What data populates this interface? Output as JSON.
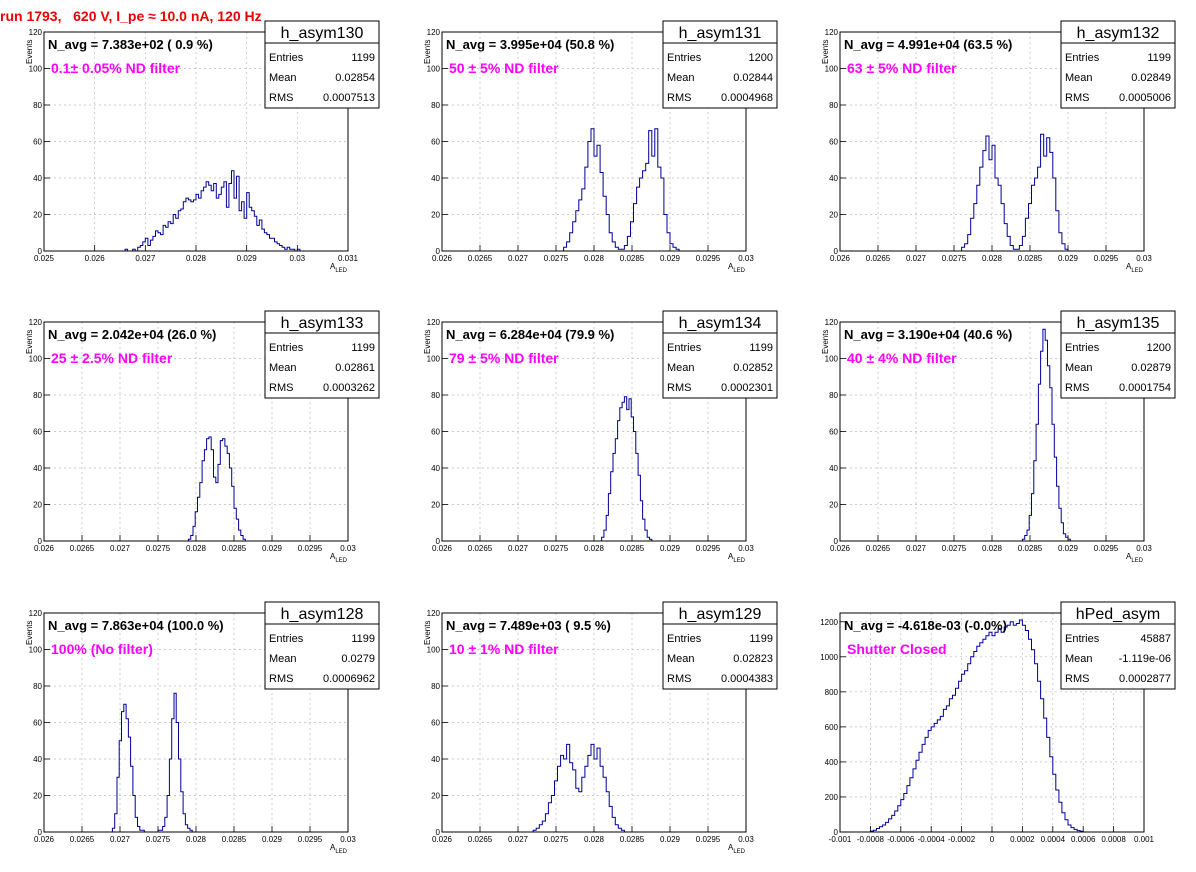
{
  "header": {
    "title": "run 1793,   620 V, I_pe ≈ 10.0 nA, 120 Hz"
  },
  "chart_data": [
    {
      "type": "histogram",
      "name": "h_asym130",
      "navg": "N_avg = 7.383e+02 ( 0.9 %)",
      "filter": "0.1± 0.05% ND filter",
      "stats": [
        [
          "Entries",
          "1199"
        ],
        [
          "Mean",
          "0.02854"
        ],
        [
          "RMS",
          "0.0007513"
        ]
      ],
      "ylabel": "Events",
      "xlabel": "A",
      "xlabel_sub": "LED",
      "xlim": [
        0.025,
        0.031
      ],
      "ylim": [
        0,
        120
      ],
      "xticks": [
        0.025,
        0.026,
        0.027,
        0.028,
        0.029,
        0.03,
        0.031
      ],
      "xtick_labels": [
        "0.025",
        "0.026",
        "0.027",
        "0.028",
        "0.029",
        "0.03",
        "0.031"
      ],
      "yticks": [
        0,
        20,
        40,
        60,
        80,
        100,
        120
      ],
      "bin_start": 0.0266,
      "bin_width": 5e-05,
      "counts": [
        1,
        0,
        0,
        1,
        0,
        2,
        3,
        5,
        7,
        3,
        6,
        8,
        11,
        10,
        9,
        14,
        13,
        16,
        15,
        20,
        18,
        22,
        23,
        27,
        29,
        28,
        27,
        28,
        31,
        29,
        33,
        35,
        38,
        36,
        33,
        37,
        29,
        31,
        35,
        38,
        24,
        37,
        44,
        29,
        41,
        22,
        27,
        18,
        32,
        24,
        22,
        19,
        14,
        17,
        12,
        10,
        9,
        7,
        7,
        5,
        4,
        3,
        2,
        1,
        2,
        1,
        1,
        0,
        1
      ]
    },
    {
      "type": "histogram",
      "name": "h_asym131",
      "navg": "N_avg = 3.995e+04 (50.8 %)",
      "filter": " 50 ± 5% ND filter",
      "stats": [
        [
          "Entries",
          "1200"
        ],
        [
          "Mean",
          "0.02844"
        ],
        [
          "RMS",
          "0.0004968"
        ]
      ],
      "ylabel": "Events",
      "xlabel": "A",
      "xlabel_sub": "LED",
      "xlim": [
        0.026,
        0.03
      ],
      "ylim": [
        0,
        120
      ],
      "xticks": [
        0.026,
        0.0265,
        0.027,
        0.0275,
        0.028,
        0.0285,
        0.029,
        0.0295,
        0.03
      ],
      "xtick_labels": [
        "0.026",
        "0.0265",
        "0.027",
        "0.0275",
        "0.028",
        "0.0285",
        "0.029",
        "0.0295",
        "0.03"
      ],
      "yticks": [
        0,
        20,
        40,
        60,
        80,
        100,
        120
      ],
      "bin_start": 0.0276,
      "bin_width": 4e-05,
      "counts": [
        2,
        5,
        10,
        16,
        22,
        28,
        34,
        46,
        60,
        67,
        52,
        58,
        43,
        30,
        20,
        10,
        5,
        2,
        1,
        1,
        3,
        8,
        16,
        26,
        35,
        40,
        44,
        48,
        66,
        52,
        67,
        46,
        40,
        20,
        10,
        4,
        2,
        1
      ]
    },
    {
      "type": "histogram",
      "name": "h_asym132",
      "navg": "N_avg = 4.991e+04 (63.5 %)",
      "filter": " 63 ± 5% ND filter",
      "stats": [
        [
          "Entries",
          "1199"
        ],
        [
          "Mean",
          "0.02849"
        ],
        [
          "RMS",
          "0.0005006"
        ]
      ],
      "ylabel": "Events",
      "xlabel": "A",
      "xlabel_sub": "LED",
      "xlim": [
        0.026,
        0.03
      ],
      "ylim": [
        0,
        120
      ],
      "xticks": [
        0.026,
        0.0265,
        0.027,
        0.0275,
        0.028,
        0.0285,
        0.029,
        0.0295,
        0.03
      ],
      "xtick_labels": [
        "0.026",
        "0.0265",
        "0.027",
        "0.0275",
        "0.028",
        "0.0285",
        "0.029",
        "0.0295",
        "0.03"
      ],
      "yticks": [
        0,
        20,
        40,
        60,
        80,
        100,
        120
      ],
      "bin_start": 0.0276,
      "bin_width": 4e-05,
      "counts": [
        2,
        4,
        9,
        18,
        26,
        36,
        46,
        55,
        63,
        50,
        58,
        40,
        36,
        26,
        15,
        8,
        3,
        1,
        1,
        3,
        8,
        18,
        26,
        36,
        40,
        46,
        64,
        52,
        62,
        54,
        40,
        22,
        10,
        4,
        1
      ]
    },
    {
      "type": "histogram",
      "name": "h_asym133",
      "navg": "N_avg = 2.042e+04 (26.0 %)",
      "filter": " 25 ± 2.5% ND filter",
      "stats": [
        [
          "Entries",
          "1199"
        ],
        [
          "Mean",
          "0.02861"
        ],
        [
          "RMS",
          "0.0003262"
        ]
      ],
      "ylabel": "Events",
      "xlabel": "A",
      "xlabel_sub": "LED",
      "xlim": [
        0.026,
        0.03
      ],
      "ylim": [
        0,
        120
      ],
      "xticks": [
        0.026,
        0.0265,
        0.027,
        0.0275,
        0.028,
        0.0285,
        0.029,
        0.0295,
        0.03
      ],
      "xtick_labels": [
        "0.026",
        "0.0265",
        "0.027",
        "0.0275",
        "0.028",
        "0.0285",
        "0.029",
        "0.0295",
        "0.03"
      ],
      "yticks": [
        0,
        20,
        40,
        60,
        80,
        100,
        120
      ],
      "bin_start": 0.0279,
      "bin_width": 3e-05,
      "counts": [
        1,
        3,
        8,
        16,
        24,
        32,
        44,
        50,
        56,
        57,
        50,
        35,
        32,
        42,
        55,
        56,
        52,
        48,
        40,
        30,
        18,
        12,
        6,
        3,
        1
      ]
    },
    {
      "type": "histogram",
      "name": "h_asym134",
      "navg": "N_avg = 6.284e+04 (79.9 %)",
      "filter": " 79 ± 5% ND filter",
      "stats": [
        [
          "Entries",
          "1199"
        ],
        [
          "Mean",
          "0.02852"
        ],
        [
          "RMS",
          "0.0002301"
        ]
      ],
      "ylabel": "Events",
      "xlabel": "A",
      "xlabel_sub": "LED",
      "xlim": [
        0.026,
        0.03
      ],
      "ylim": [
        0,
        120
      ],
      "xticks": [
        0.026,
        0.0265,
        0.027,
        0.0275,
        0.028,
        0.0285,
        0.029,
        0.0295,
        0.03
      ],
      "xtick_labels": [
        "0.026",
        "0.0265",
        "0.027",
        "0.0275",
        "0.028",
        "0.0285",
        "0.029",
        "0.0295",
        "0.03"
      ],
      "yticks": [
        0,
        20,
        40,
        60,
        80,
        100,
        120
      ],
      "bin_start": 0.0281,
      "bin_width": 3e-05,
      "counts": [
        2,
        6,
        14,
        26,
        38,
        48,
        56,
        66,
        73,
        76,
        79,
        72,
        78,
        68,
        60,
        48,
        36,
        22,
        12,
        6,
        2,
        1
      ]
    },
    {
      "type": "histogram",
      "name": "h_asym135",
      "navg": "N_avg = 3.190e+04 (40.6 %)",
      "filter": " 40 ± 4% ND filter",
      "stats": [
        [
          "Entries",
          "1200"
        ],
        [
          "Mean",
          "0.02879"
        ],
        [
          "RMS",
          "0.0001754"
        ]
      ],
      "ylabel": "Events",
      "xlabel": "A",
      "xlabel_sub": "LED",
      "xlim": [
        0.026,
        0.03
      ],
      "ylim": [
        0,
        120
      ],
      "xticks": [
        0.026,
        0.0265,
        0.027,
        0.0275,
        0.028,
        0.0285,
        0.029,
        0.0295,
        0.03
      ],
      "xtick_labels": [
        "0.026",
        "0.0265",
        "0.027",
        "0.0275",
        "0.028",
        "0.0285",
        "0.029",
        "0.0295",
        "0.03"
      ],
      "yticks": [
        0,
        20,
        40,
        60,
        80,
        100,
        120
      ],
      "bin_start": 0.0284,
      "bin_width": 3e-05,
      "counts": [
        1,
        3,
        6,
        14,
        26,
        44,
        64,
        86,
        104,
        116,
        110,
        96,
        84,
        64,
        46,
        30,
        18,
        10,
        4,
        2,
        1
      ]
    },
    {
      "type": "histogram",
      "name": "h_asym128",
      "navg": "N_avg = 7.863e+04 (100.0 %)",
      "filter": " 100% (No filter)",
      "stats": [
        [
          "Entries",
          "1199"
        ],
        [
          "Mean",
          "0.0279"
        ],
        [
          "RMS",
          "0.0006962"
        ]
      ],
      "ylabel": "Events",
      "xlabel": "A",
      "xlabel_sub": "LED",
      "xlim": [
        0.026,
        0.03
      ],
      "ylim": [
        0,
        120
      ],
      "xticks": [
        0.026,
        0.0265,
        0.027,
        0.0275,
        0.028,
        0.0285,
        0.029,
        0.0295,
        0.03
      ],
      "xtick_labels": [
        "0.026",
        "0.0265",
        "0.027",
        "0.0275",
        "0.028",
        "0.0285",
        "0.029",
        "0.0295",
        "0.03"
      ],
      "yticks": [
        0,
        20,
        40,
        60,
        80,
        100,
        120
      ],
      "bin_start": 0.0269,
      "bin_width": 3e-05,
      "counts": [
        2,
        10,
        30,
        50,
        66,
        70,
        62,
        52,
        36,
        20,
        8,
        3,
        1,
        1,
        0,
        0,
        0,
        0,
        0,
        0,
        1,
        1,
        3,
        8,
        20,
        40,
        62,
        76,
        60,
        40,
        22,
        10,
        4,
        2,
        1
      ]
    },
    {
      "type": "histogram",
      "name": "h_asym129",
      "navg": "N_avg = 7.489e+03 ( 9.5 %)",
      "filter": " 10 ± 1% ND filter",
      "stats": [
        [
          "Entries",
          "1199"
        ],
        [
          "Mean",
          "0.02823"
        ],
        [
          "RMS",
          "0.0004383"
        ]
      ],
      "ylabel": "Events",
      "xlabel": "A",
      "xlabel_sub": "LED",
      "xlim": [
        0.026,
        0.03
      ],
      "ylim": [
        0,
        120
      ],
      "xticks": [
        0.026,
        0.0265,
        0.027,
        0.0275,
        0.028,
        0.0285,
        0.029,
        0.0295,
        0.03
      ],
      "xtick_labels": [
        "0.026",
        "0.0265",
        "0.027",
        "0.0275",
        "0.028",
        "0.0285",
        "0.029",
        "0.0295",
        "0.03"
      ],
      "yticks": [
        0,
        20,
        40,
        60,
        80,
        100,
        120
      ],
      "bin_start": 0.0272,
      "bin_width": 4e-05,
      "counts": [
        1,
        2,
        4,
        6,
        10,
        16,
        20,
        28,
        36,
        42,
        40,
        48,
        38,
        34,
        24,
        22,
        30,
        36,
        42,
        48,
        40,
        46,
        36,
        30,
        22,
        14,
        8,
        4,
        2,
        1
      ]
    },
    {
      "type": "histogram",
      "name": "hPed_asym",
      "navg": "N_avg = -4.618e-03 (-0.0%)",
      "filter": "Shutter Closed",
      "stats": [
        [
          "Entries",
          "45887"
        ],
        [
          "Mean",
          "-1.119e-06"
        ],
        [
          "RMS",
          "0.0002877"
        ]
      ],
      "ylabel": "",
      "xlabel": "",
      "xlabel_sub": "",
      "xlim": [
        -0.001,
        0.001
      ],
      "ylim": [
        0,
        1250
      ],
      "xticks": [
        -0.001,
        -0.0008,
        -0.0006,
        -0.0004,
        -0.0002,
        0,
        0.0002,
        0.0004,
        0.0006,
        0.0008,
        0.001
      ],
      "xtick_labels": [
        "-0.001",
        "-0.0008",
        "-0.0006",
        "-0.0004",
        "-0.0002",
        "0",
        "0.0002",
        "0.0004",
        "0.0006",
        "0.0008",
        "0.001"
      ],
      "yticks": [
        0,
        200,
        400,
        600,
        800,
        1000,
        1200
      ],
      "bin_start": -0.0008,
      "bin_width": 2e-05,
      "counts": [
        5,
        10,
        20,
        30,
        40,
        55,
        75,
        95,
        120,
        150,
        185,
        220,
        265,
        310,
        360,
        410,
        455,
        500,
        540,
        580,
        600,
        620,
        640,
        660,
        700,
        720,
        760,
        780,
        820,
        860,
        900,
        920,
        960,
        1000,
        1030,
        1060,
        1080,
        1100,
        1120,
        1140,
        1120,
        1140,
        1160,
        1140,
        1170,
        1180,
        1200,
        1180,
        1190,
        1210,
        1180,
        1150,
        1100,
        1040,
        960,
        860,
        760,
        650,
        540,
        430,
        330,
        240,
        170,
        110,
        70,
        40,
        25,
        15,
        8,
        4
      ]
    }
  ]
}
